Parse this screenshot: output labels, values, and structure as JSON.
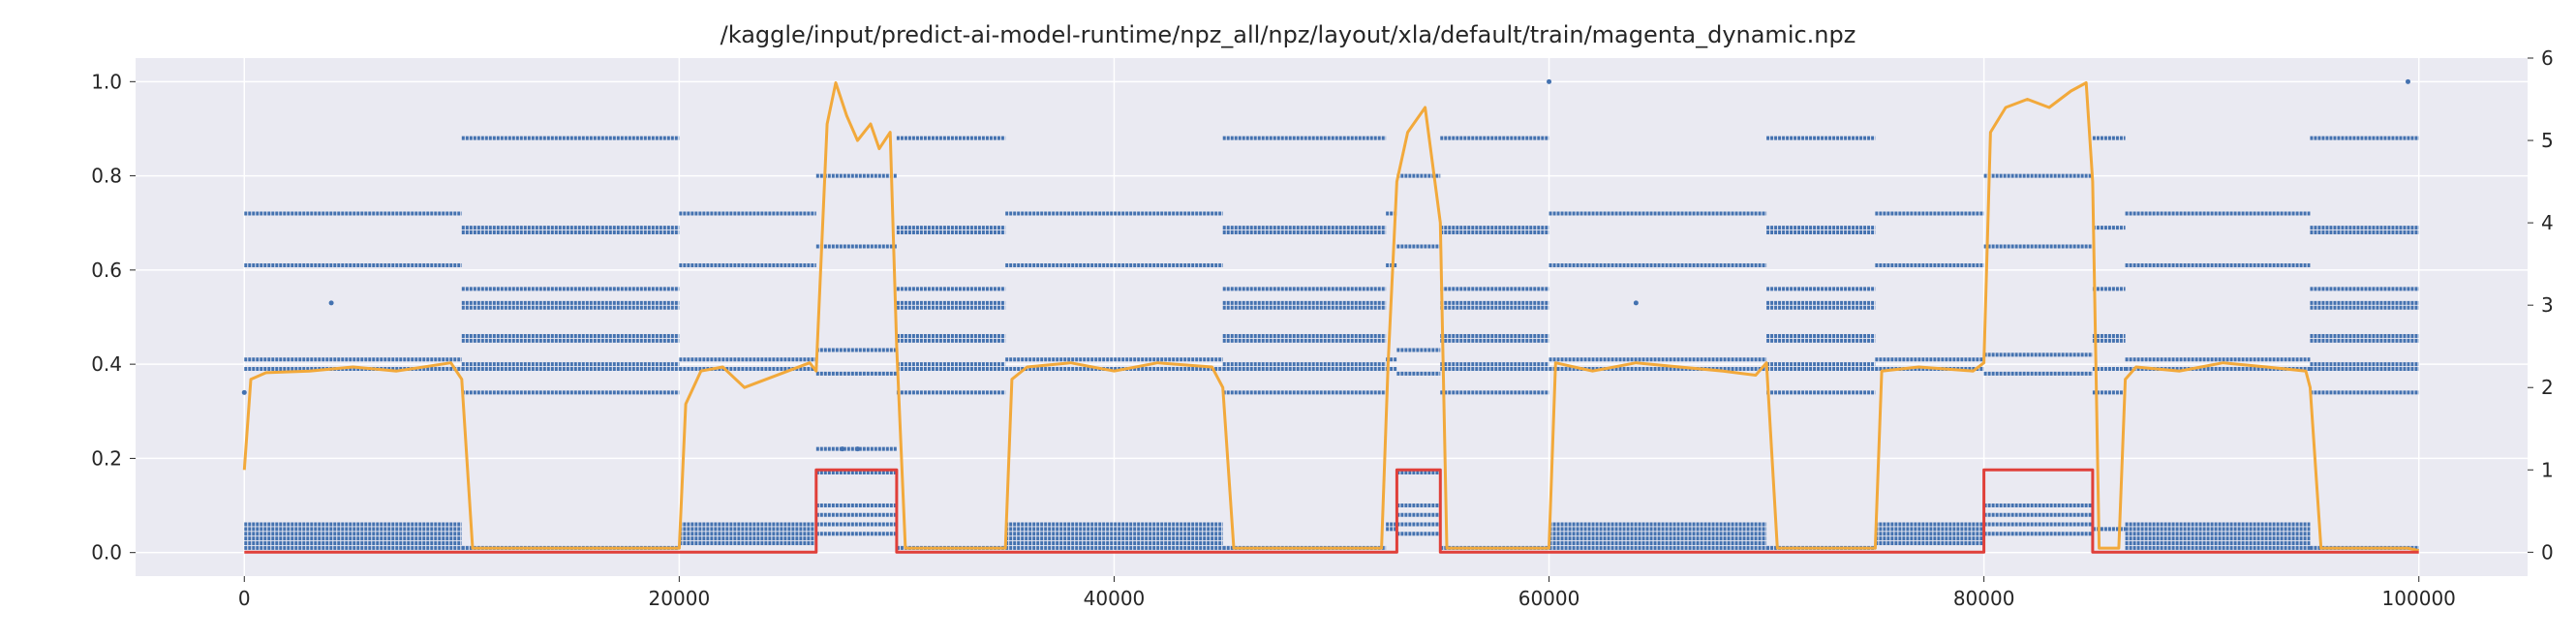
{
  "chart_data": {
    "type": "line",
    "title": "/kaggle/input/predict-ai-model-runtime/npz_all/npz/layout/xla/default/train/magenta_dynamic.npz",
    "xlabel": "",
    "ylabel": "",
    "xlim": [
      -5000,
      105000
    ],
    "ylim_left": [
      -0.05,
      1.05
    ],
    "ylim_right": [
      -0.29,
      6.0
    ],
    "grid": true,
    "x_ticks": [
      0,
      20000,
      40000,
      60000,
      80000,
      100000
    ],
    "x_tick_labels": [
      "0",
      "20000",
      "40000",
      "60000",
      "80000",
      "100000"
    ],
    "y_left_ticks": [
      0.0,
      0.2,
      0.4,
      0.6,
      0.8,
      1.0
    ],
    "y_left_tick_labels": [
      "0.0",
      "0.2",
      "0.4",
      "0.6",
      "0.8",
      "1.0"
    ],
    "y_right_ticks": [
      0,
      1,
      2,
      3,
      4,
      5,
      6
    ],
    "y_right_tick_labels": [
      "0",
      "1",
      "2",
      "3",
      "4",
      "5",
      "6"
    ],
    "colors": {
      "scatter": "#4472b0",
      "orange": "#f2a93b",
      "red": "#e0403a"
    },
    "series": [
      {
        "kind": "scatter",
        "axis": "left",
        "color": "#4472b0",
        "segments": [
          {
            "x": [
              0,
              10000
            ],
            "levels": [
              0.72,
              0.61,
              0.41,
              0.39,
              0.06,
              0.05,
              0.04,
              0.03,
              0.02,
              0.01
            ]
          },
          {
            "x": [
              10000,
              20000
            ],
            "levels": [
              0.88,
              0.69,
              0.68,
              0.56,
              0.53,
              0.52,
              0.46,
              0.45,
              0.4,
              0.39,
              0.34,
              0.01
            ]
          },
          {
            "x": [
              20000,
              26300
            ],
            "levels": [
              0.72,
              0.61,
              0.41,
              0.39,
              0.06,
              0.05,
              0.04,
              0.03,
              0.02
            ]
          },
          {
            "x": [
              26300,
              30000
            ],
            "levels": [
              0.8,
              0.65,
              0.43,
              0.38,
              0.22,
              0.17,
              0.1,
              0.08,
              0.06,
              0.04
            ]
          },
          {
            "x": [
              30000,
              35000
            ],
            "levels": [
              0.88,
              0.69,
              0.68,
              0.56,
              0.53,
              0.52,
              0.46,
              0.45,
              0.4,
              0.39,
              0.34,
              0.01
            ]
          },
          {
            "x": [
              35000,
              45000
            ],
            "levels": [
              0.72,
              0.61,
              0.41,
              0.39,
              0.06,
              0.05,
              0.04,
              0.03,
              0.02,
              0.01
            ]
          },
          {
            "x": [
              45000,
              52500
            ],
            "levels": [
              0.88,
              0.69,
              0.68,
              0.56,
              0.53,
              0.52,
              0.46,
              0.45,
              0.4,
              0.39,
              0.34,
              0.01
            ]
          },
          {
            "x": [
              52500,
              53000
            ],
            "levels": [
              0.72,
              0.61,
              0.41,
              0.39,
              0.06,
              0.05
            ]
          },
          {
            "x": [
              53000,
              55000
            ],
            "levels": [
              0.8,
              0.65,
              0.43,
              0.38,
              0.17,
              0.1,
              0.08,
              0.06,
              0.04
            ]
          },
          {
            "x": [
              55000,
              60000
            ],
            "levels": [
              0.88,
              0.69,
              0.68,
              0.56,
              0.53,
              0.52,
              0.46,
              0.45,
              0.4,
              0.39,
              0.34,
              0.01
            ]
          },
          {
            "x": [
              60000,
              70000
            ],
            "levels": [
              0.72,
              0.61,
              0.41,
              0.39,
              0.06,
              0.05,
              0.04,
              0.03,
              0.02,
              0.01
            ]
          },
          {
            "x": [
              70000,
              75000
            ],
            "levels": [
              0.88,
              0.69,
              0.68,
              0.56,
              0.53,
              0.52,
              0.46,
              0.45,
              0.4,
              0.39,
              0.34,
              0.01
            ]
          },
          {
            "x": [
              75000,
              80000
            ],
            "levels": [
              0.72,
              0.61,
              0.41,
              0.39,
              0.06,
              0.05,
              0.04,
              0.03,
              0.02
            ]
          },
          {
            "x": [
              80000,
              85000
            ],
            "levels": [
              0.8,
              0.65,
              0.42,
              0.38,
              0.1,
              0.08,
              0.06,
              0.04
            ]
          },
          {
            "x": [
              85000,
              86500
            ],
            "levels": [
              0.88,
              0.69,
              0.56,
              0.46,
              0.45,
              0.39,
              0.34,
              0.05
            ]
          },
          {
            "x": [
              86500,
              95000
            ],
            "levels": [
              0.72,
              0.61,
              0.41,
              0.39,
              0.06,
              0.05,
              0.04,
              0.03,
              0.02,
              0.01
            ]
          },
          {
            "x": [
              95000,
              100000
            ],
            "levels": [
              0.88,
              0.69,
              0.68,
              0.56,
              0.53,
              0.52,
              0.46,
              0.45,
              0.4,
              0.39,
              0.34,
              0.01
            ]
          }
        ],
        "outliers": [
          {
            "x": 0,
            "y": 0.34
          },
          {
            "x": 4000,
            "y": 0.53
          },
          {
            "x": 27500,
            "y": 0.22
          },
          {
            "x": 28200,
            "y": 0.22
          },
          {
            "x": 60000,
            "y": 1.0
          },
          {
            "x": 64000,
            "y": 0.53
          },
          {
            "x": 99500,
            "y": 1.0
          }
        ]
      },
      {
        "kind": "line",
        "axis": "right",
        "color": "#f2a93b",
        "x": [
          0,
          300,
          1000,
          3000,
          5000,
          7000,
          9500,
          10000,
          10500,
          20000,
          20300,
          21000,
          22000,
          23000,
          25000,
          26000,
          26300,
          26800,
          27200,
          27700,
          28200,
          28800,
          29200,
          29700,
          30000,
          30400,
          35000,
          35300,
          36000,
          38000,
          40000,
          42000,
          44500,
          45000,
          45500,
          52300,
          52600,
          53000,
          53500,
          54300,
          55000,
          55300,
          60000,
          60300,
          62000,
          64000,
          66000,
          68000,
          69500,
          70000,
          70500,
          75000,
          75300,
          77000,
          79500,
          80000,
          80300,
          81000,
          82000,
          83000,
          84000,
          84700,
          85000,
          85300,
          86200,
          86500,
          87000,
          89000,
          91000,
          93000,
          94800,
          95000,
          95500,
          99500,
          100000
        ],
        "y": [
          1.0,
          2.1,
          2.18,
          2.2,
          2.25,
          2.2,
          2.3,
          2.1,
          0.05,
          0.05,
          1.8,
          2.2,
          2.25,
          2.0,
          2.2,
          2.3,
          2.2,
          5.2,
          5.7,
          5.3,
          5.0,
          5.2,
          4.9,
          5.1,
          2.5,
          0.05,
          0.05,
          2.1,
          2.25,
          2.3,
          2.2,
          2.3,
          2.25,
          2.0,
          0.05,
          0.05,
          2.3,
          4.5,
          5.1,
          5.4,
          4.0,
          0.05,
          0.05,
          2.3,
          2.2,
          2.3,
          2.25,
          2.2,
          2.15,
          2.3,
          0.05,
          0.05,
          2.2,
          2.25,
          2.2,
          2.3,
          5.1,
          5.4,
          5.5,
          5.4,
          5.6,
          5.7,
          4.5,
          0.05,
          0.05,
          2.1,
          2.25,
          2.2,
          2.3,
          2.25,
          2.2,
          2.0,
          0.05,
          0.05,
          0.02
        ]
      },
      {
        "kind": "line",
        "axis": "right",
        "color": "#e0403a",
        "x": [
          0,
          26300,
          26300,
          30000,
          30000,
          53000,
          53000,
          55000,
          55000,
          80000,
          80000,
          85000,
          85000,
          100000
        ],
        "y": [
          0,
          0,
          1,
          1,
          0,
          0,
          1,
          1,
          0,
          0,
          1,
          1,
          0,
          0
        ]
      }
    ]
  }
}
